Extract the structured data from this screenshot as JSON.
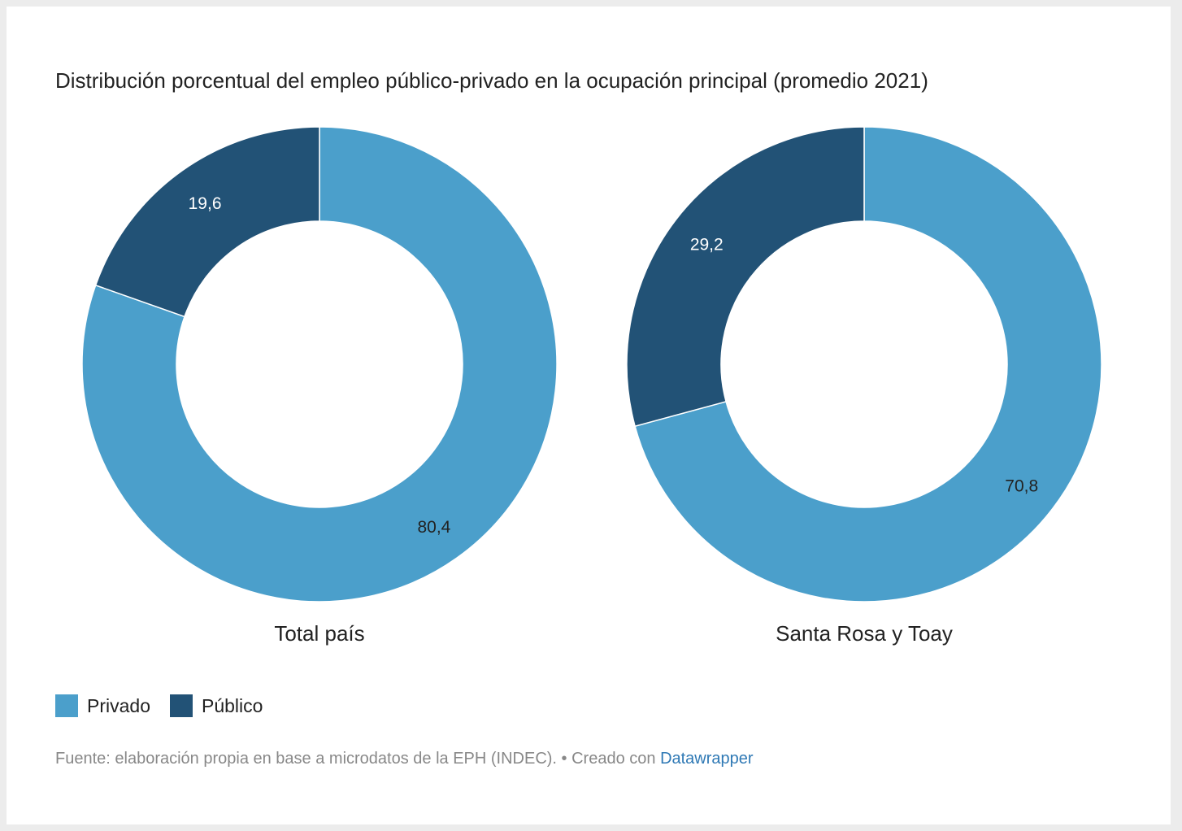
{
  "title": "Distribución porcentual del empleo público-privado en la ocupación principal (promedio 2021)",
  "colors": {
    "privado": "#4b9fcb",
    "publico": "#225276"
  },
  "legend": [
    {
      "label": "Privado",
      "color": "#4b9fcb"
    },
    {
      "label": "Público",
      "color": "#225276"
    }
  ],
  "chart_data": [
    {
      "type": "pie",
      "variant": "donut",
      "title": "Total país",
      "series": [
        {
          "name": "Privado",
          "value": 80.4,
          "label": "80,4"
        },
        {
          "name": "Público",
          "value": 19.6,
          "label": "19,6"
        }
      ]
    },
    {
      "type": "pie",
      "variant": "donut",
      "title": "Santa Rosa y Toay",
      "series": [
        {
          "name": "Privado",
          "value": 70.8,
          "label": "70,8"
        },
        {
          "name": "Público",
          "value": 29.2,
          "label": "29,2"
        }
      ]
    }
  ],
  "footer": {
    "source": "Fuente: elaboración propia en base a microdatos de la EPH (INDEC). • Creado con ",
    "link": "Datawrapper"
  }
}
